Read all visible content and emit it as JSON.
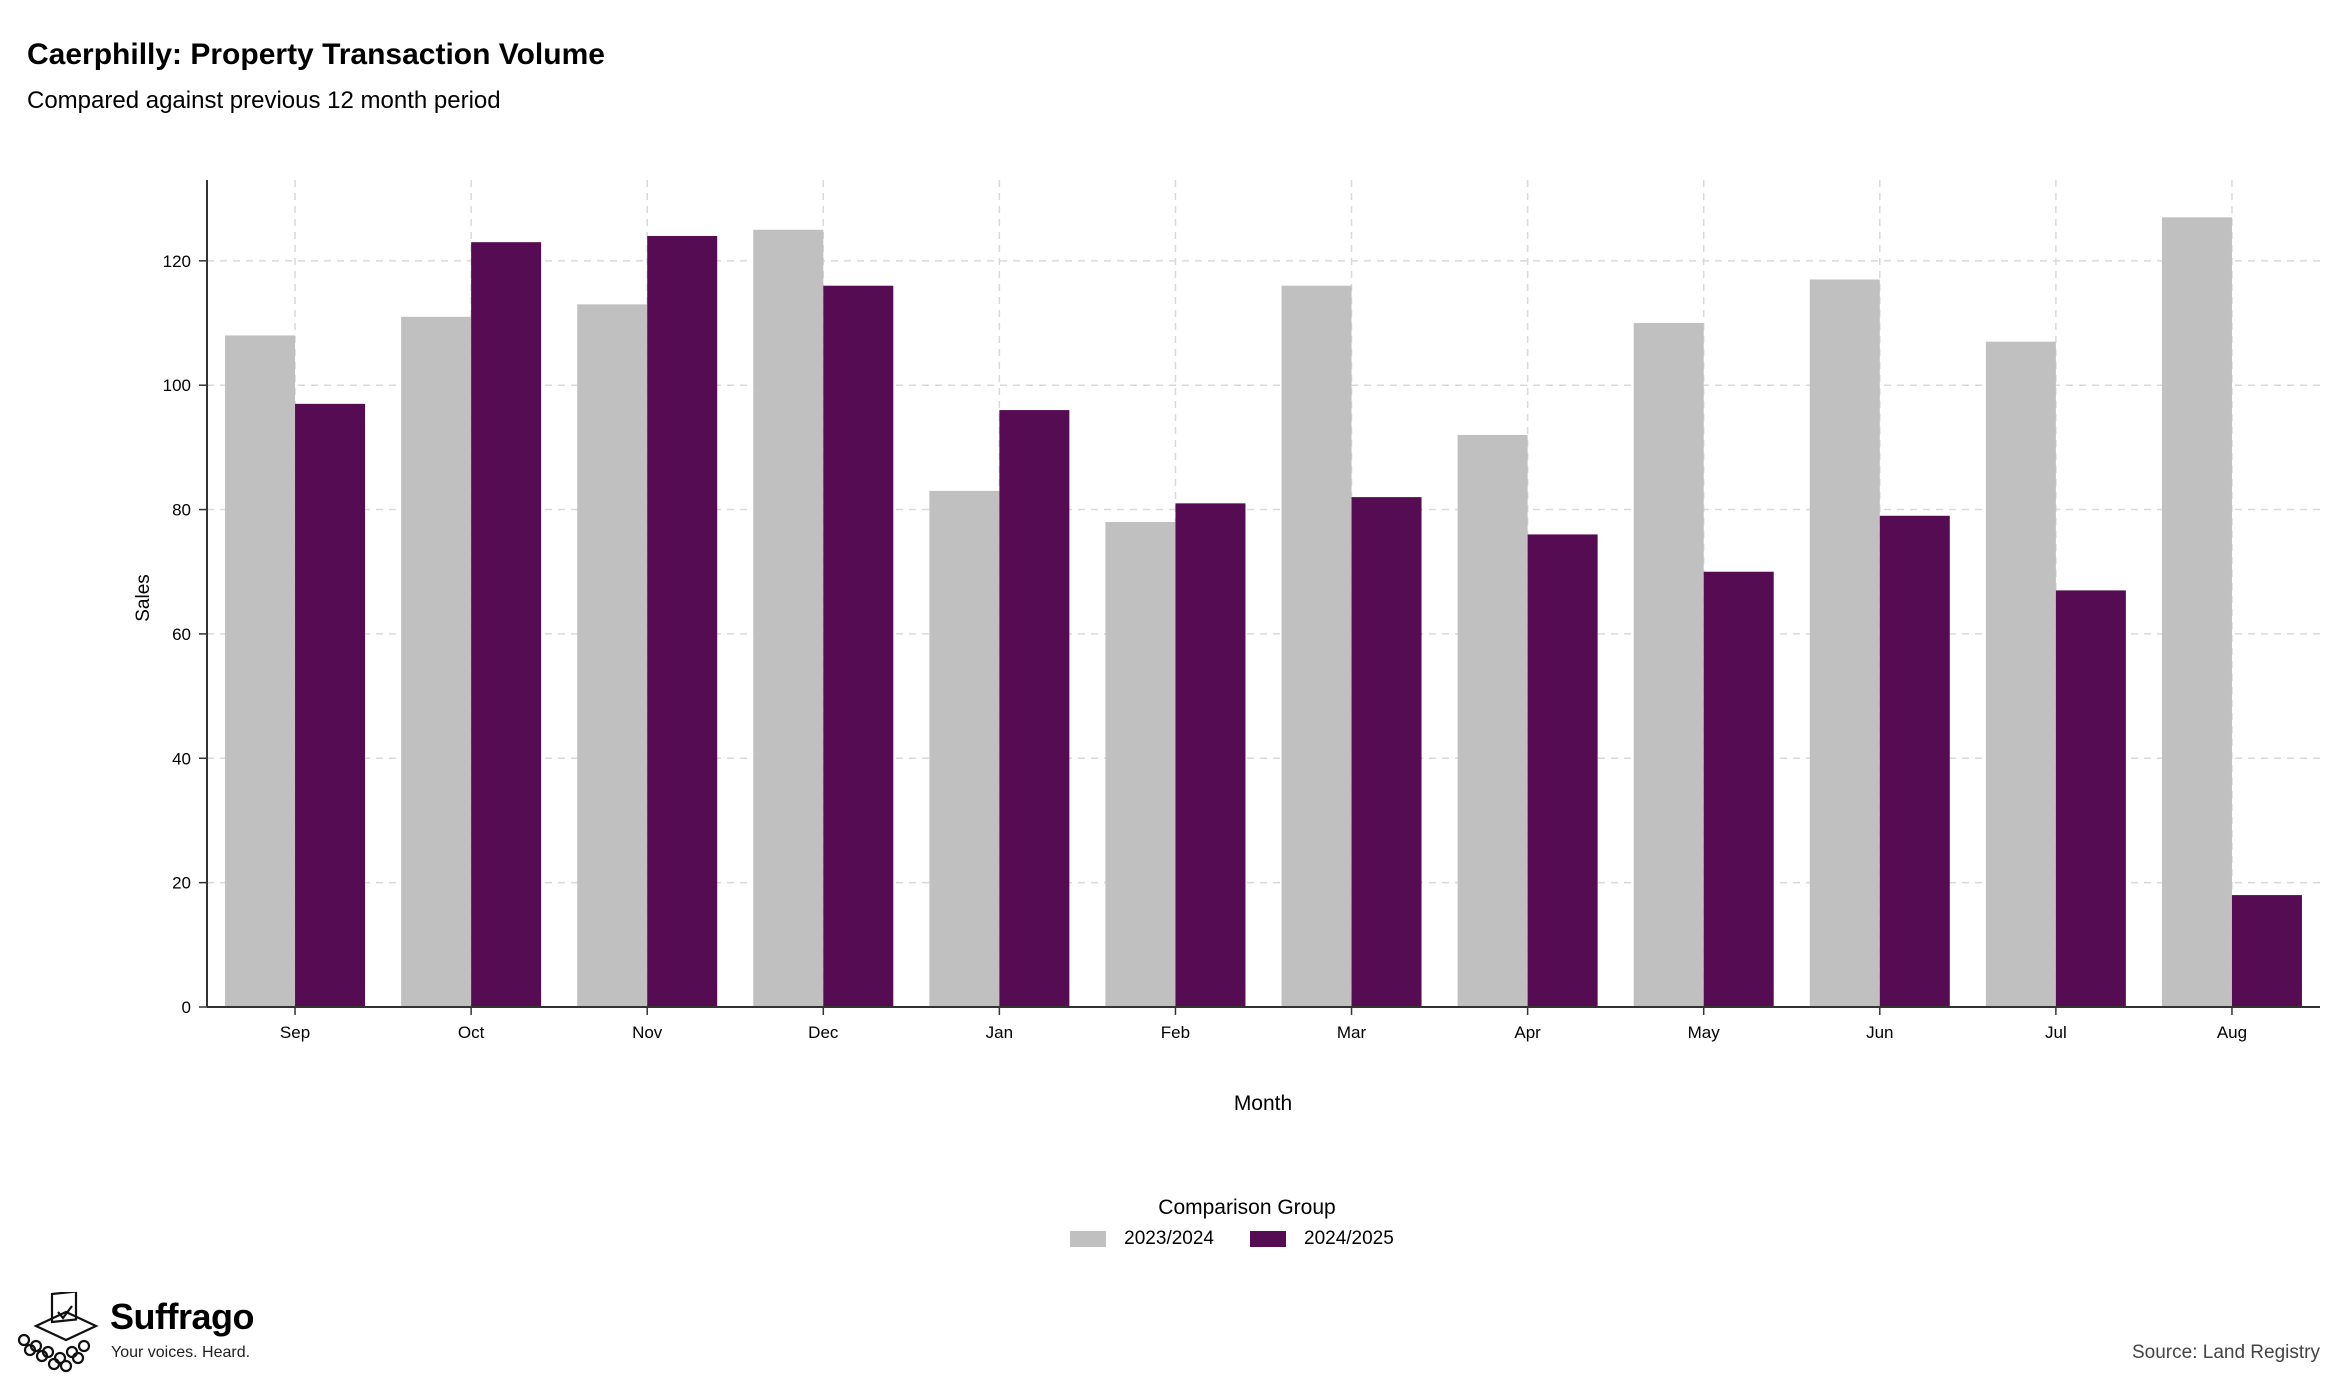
{
  "chart_data": {
    "type": "bar",
    "title": "Caerphilly: Property Transaction Volume",
    "subtitle": "Compared against previous 12 month period",
    "xlabel": "Month",
    "ylabel": "Sales",
    "categories": [
      "Sep",
      "Oct",
      "Nov",
      "Dec",
      "Jan",
      "Feb",
      "Mar",
      "Apr",
      "May",
      "Jun",
      "Jul",
      "Aug"
    ],
    "series": [
      {
        "name": "2023/2024",
        "color": "#c0c0c0",
        "values": [
          108,
          111,
          113,
          125,
          83,
          78,
          116,
          92,
          110,
          117,
          107,
          127
        ]
      },
      {
        "name": "2024/2025",
        "color": "#550c52",
        "values": [
          97,
          123,
          124,
          116,
          96,
          81,
          82,
          76,
          70,
          79,
          67,
          18
        ]
      }
    ],
    "ylim": [
      0,
      133
    ],
    "yticks": [
      0,
      20,
      40,
      60,
      80,
      100,
      120
    ],
    "grid": true,
    "legend_title": "Comparison Group",
    "legend_position": "bottom"
  },
  "branding": {
    "name": "Suffrago",
    "tagline": "Your voices. Heard."
  },
  "source": "Source: Land Registry"
}
